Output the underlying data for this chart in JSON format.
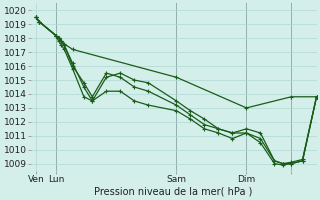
{
  "title": "Pression niveau de la mer( hPa )",
  "ylabel_ticks": [
    1009,
    1010,
    1011,
    1012,
    1013,
    1014,
    1015,
    1016,
    1017,
    1018,
    1019,
    1020
  ],
  "ylim": [
    1008.5,
    1020.5
  ],
  "xlim": [
    -2,
    100
  ],
  "background_color": "#d4eeea",
  "grid_color": "#b0d8d2",
  "line_color": "#1a5c1a",
  "vline_color": "#4a5a5a",
  "xtick_positions": [
    0,
    7,
    50,
    75,
    91
  ],
  "xtick_labels": [
    "Ven",
    "Lun",
    "Sam",
    "Dim",
    ""
  ],
  "series": [
    {
      "x": [
        0,
        1,
        7,
        8,
        9,
        10,
        13,
        50,
        75,
        91,
        100
      ],
      "y": [
        1019.5,
        1019.2,
        1018.2,
        1018.0,
        1017.8,
        1017.6,
        1017.2,
        1015.2,
        1013.0,
        1013.8,
        1013.8
      ],
      "linestyle": "-",
      "linewidth": 0.9
    },
    {
      "x": [
        0,
        1,
        7,
        8,
        9,
        10,
        13,
        17,
        20,
        25,
        30,
        35,
        40,
        50,
        55,
        60,
        65,
        70,
        75,
        80,
        85,
        88,
        91,
        95,
        100
      ],
      "y": [
        1019.5,
        1019.2,
        1018.2,
        1018.0,
        1017.8,
        1017.5,
        1016.0,
        1014.8,
        1013.8,
        1015.5,
        1015.2,
        1014.5,
        1014.2,
        1013.2,
        1012.5,
        1011.8,
        1011.5,
        1011.2,
        1011.5,
        1011.2,
        1009.2,
        1009.0,
        1009.1,
        1009.3,
        1013.8
      ],
      "linestyle": "-",
      "linewidth": 0.9
    },
    {
      "x": [
        0,
        1,
        7,
        8,
        9,
        10,
        13,
        17,
        20,
        25,
        30,
        35,
        40,
        50,
        55,
        60,
        65,
        70,
        75,
        80,
        85,
        88,
        91,
        95,
        100
      ],
      "y": [
        1019.5,
        1019.2,
        1018.2,
        1018.0,
        1017.8,
        1017.5,
        1016.2,
        1014.5,
        1013.5,
        1015.2,
        1015.5,
        1015.0,
        1014.8,
        1013.5,
        1012.8,
        1012.2,
        1011.5,
        1011.2,
        1011.2,
        1010.8,
        1009.2,
        1009.0,
        1009.0,
        1009.2,
        1013.8
      ],
      "linestyle": "-",
      "linewidth": 0.9
    },
    {
      "x": [
        0,
        1,
        7,
        8,
        9,
        10,
        13,
        17,
        20,
        25,
        30,
        35,
        40,
        50,
        55,
        60,
        65,
        70,
        75,
        80,
        85,
        88,
        91,
        95,
        100
      ],
      "y": [
        1019.5,
        1019.2,
        1018.2,
        1017.8,
        1017.5,
        1017.2,
        1015.8,
        1013.8,
        1013.5,
        1014.2,
        1014.2,
        1013.5,
        1013.2,
        1012.8,
        1012.2,
        1011.5,
        1011.2,
        1010.8,
        1011.2,
        1010.5,
        1009.0,
        1008.9,
        1009.0,
        1009.2,
        1013.8
      ],
      "linestyle": "-",
      "linewidth": 0.9
    }
  ],
  "vline_positions": [
    7,
    50,
    75,
    91
  ],
  "fontsize": 7.0,
  "tick_fontsize": 6.5
}
